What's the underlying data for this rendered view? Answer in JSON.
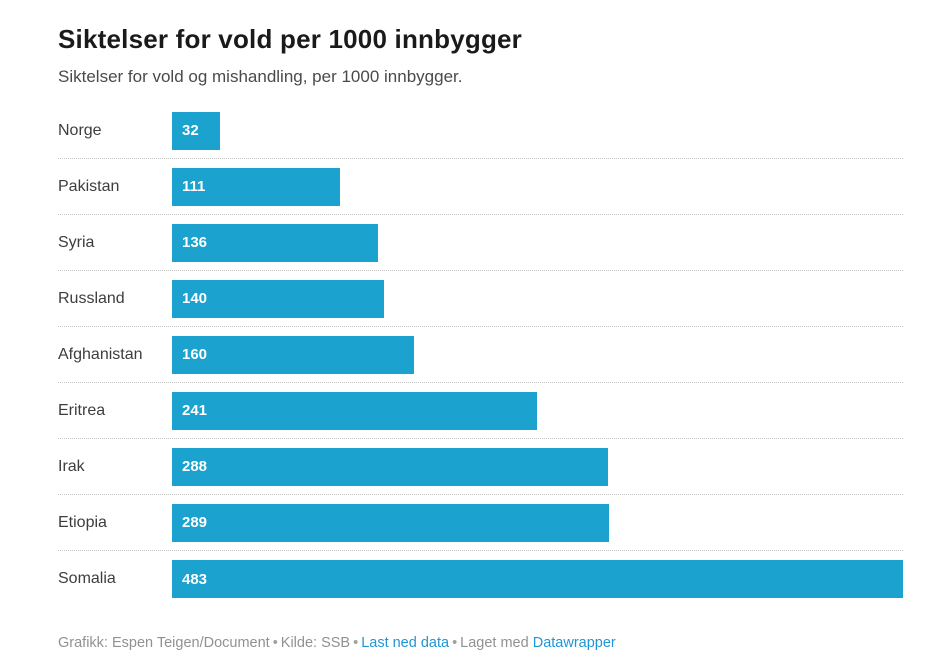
{
  "header": {
    "title": "Siktelser for vold per 1000 innbygger",
    "subtitle": "Siktelser for vold og mishandling, per 1000 innbygger."
  },
  "chart_data": {
    "type": "bar",
    "orientation": "horizontal",
    "title": "Siktelser for vold per 1000 innbygger",
    "subtitle": "Siktelser for vold og mishandling, per 1000 innbygger.",
    "categories": [
      "Norge",
      "Pakistan",
      "Syria",
      "Russland",
      "Afghanistan",
      "Eritrea",
      "Irak",
      "Etiopia",
      "Somalia"
    ],
    "values": [
      32,
      111,
      136,
      140,
      160,
      241,
      288,
      289,
      483
    ],
    "xlim": [
      0,
      483
    ],
    "bar_color": "#1ca2ce",
    "value_label_color": "#ffffff",
    "value_label_position": "inside-start",
    "row_separator": "dotted",
    "legend": "none",
    "grid": "off"
  },
  "footer": {
    "credit": "Grafikk: Espen Teigen/Document",
    "source": "Kilde: SSB",
    "download_link": "Last ned data",
    "made_with": "Laget med",
    "datawrapper_link": "Datawrapper",
    "bullet": "•",
    "link_color": "#2196d4"
  }
}
